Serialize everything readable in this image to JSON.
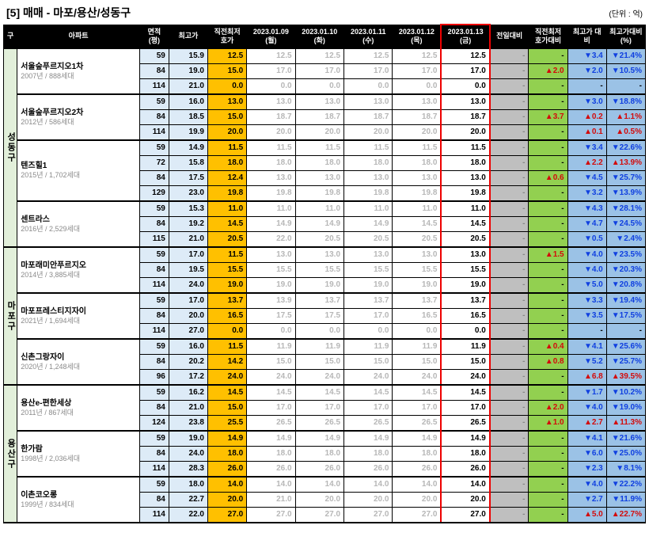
{
  "title": "[5] 매매 - 마포/용산/성동구",
  "unit": "(단위 : 억)",
  "headers": {
    "gu": "구",
    "apt": "아파트",
    "area": "면적\n(평)",
    "high": "최고가",
    "prev_low": "직전최저\n호가",
    "day1": "2023.01.09\n(월)",
    "day2": "2023.01.10\n(화)",
    "day3": "2023.01.11\n(수)",
    "day4": "2023.01.12\n(목)",
    "day5": "2023.01.13\n(금)",
    "vs_prev_day": "전일대비",
    "vs_prev_low": "직전최저\n호가대비",
    "vs_high": "최고가\n대비",
    "vs_high_pct": "최고가대비\n(%)"
  },
  "districts": [
    {
      "gu": "성동구",
      "complexes": [
        {
          "name": "서울숲푸르지오1차",
          "sub": "2007년 / 888세대",
          "rows": [
            {
              "area": 59,
              "high": 15.9,
              "prev": 12.5,
              "d": [
                12.5,
                12.5,
                12.5,
                12.5,
                12.5
              ],
              "vpd": "-",
              "vpl": [
                "-",
                null
              ],
              "vh": [
                -3.4,
                "down"
              ],
              "vhp": [
                -21.4,
                "down"
              ]
            },
            {
              "area": 84,
              "high": 19.0,
              "prev": 15.0,
              "d": [
                17.0,
                17.0,
                17.0,
                17.0,
                17.0
              ],
              "vpd": "-",
              "vpl": [
                2.0,
                "up"
              ],
              "vh": [
                -2.0,
                "down"
              ],
              "vhp": [
                -10.5,
                "down"
              ]
            },
            {
              "area": 114,
              "high": 21.0,
              "prev": 0.0,
              "d": [
                0.0,
                0.0,
                0.0,
                0.0,
                0.0
              ],
              "vpd": "-",
              "vpl": [
                "-",
                null
              ],
              "vh": [
                "-",
                null
              ],
              "vhp": [
                "-",
                null
              ]
            }
          ]
        },
        {
          "name": "서울숲푸르지오2차",
          "sub": "2012년 / 586세대",
          "rows": [
            {
              "area": 59,
              "high": 16.0,
              "prev": 13.0,
              "d": [
                13.0,
                13.0,
                13.0,
                13.0,
                13.0
              ],
              "vpd": "-",
              "vpl": [
                "-",
                null
              ],
              "vh": [
                -3.0,
                "down"
              ],
              "vhp": [
                -18.8,
                "down"
              ]
            },
            {
              "area": 84,
              "high": 18.5,
              "prev": 15.0,
              "d": [
                18.7,
                18.7,
                18.7,
                18.7,
                18.7
              ],
              "vpd": "-",
              "vpl": [
                3.7,
                "up"
              ],
              "vh": [
                0.2,
                "up"
              ],
              "vhp": [
                1.1,
                "up"
              ]
            },
            {
              "area": 114,
              "high": 19.9,
              "prev": 20.0,
              "d": [
                20.0,
                20.0,
                20.0,
                20.0,
                20.0
              ],
              "vpd": "-",
              "vpl": [
                "-",
                null
              ],
              "vh": [
                0.1,
                "up"
              ],
              "vhp": [
                0.5,
                "up"
              ]
            }
          ]
        },
        {
          "name": "텐즈힐1",
          "sub": "2015년 / 1,702세대",
          "rows": [
            {
              "area": 59,
              "high": 14.9,
              "prev": 11.5,
              "d": [
                11.5,
                11.5,
                11.5,
                11.5,
                11.5
              ],
              "vpd": "-",
              "vpl": [
                "-",
                null
              ],
              "vh": [
                -3.4,
                "down"
              ],
              "vhp": [
                -22.6,
                "down"
              ]
            },
            {
              "area": 72,
              "high": 15.8,
              "prev": 18.0,
              "d": [
                18.0,
                18.0,
                18.0,
                18.0,
                18.0
              ],
              "vpd": "-",
              "vpl": [
                "-",
                null
              ],
              "vh": [
                2.2,
                "up"
              ],
              "vhp": [
                13.9,
                "up"
              ]
            },
            {
              "area": 84,
              "high": 17.5,
              "prev": 12.4,
              "d": [
                13.0,
                13.0,
                13.0,
                13.0,
                13.0
              ],
              "vpd": "-",
              "vpl": [
                0.6,
                "up"
              ],
              "vh": [
                -4.5,
                "down"
              ],
              "vhp": [
                -25.7,
                "down"
              ]
            },
            {
              "area": 129,
              "high": 23.0,
              "prev": 19.8,
              "d": [
                19.8,
                19.8,
                19.8,
                19.8,
                19.8
              ],
              "vpd": "-",
              "vpl": [
                "-",
                null
              ],
              "vh": [
                -3.2,
                "down"
              ],
              "vhp": [
                -13.9,
                "down"
              ]
            }
          ]
        },
        {
          "name": "센트라스",
          "sub": "2016년 / 2,529세대",
          "rows": [
            {
              "area": 59,
              "high": 15.3,
              "prev": 11.0,
              "d": [
                11.0,
                11.0,
                11.0,
                11.0,
                11.0
              ],
              "vpd": "-",
              "vpl": [
                "-",
                null
              ],
              "vh": [
                -4.3,
                "down"
              ],
              "vhp": [
                -28.1,
                "down"
              ]
            },
            {
              "area": 84,
              "high": 19.2,
              "prev": 14.5,
              "d": [
                14.9,
                14.9,
                14.9,
                14.5,
                14.5
              ],
              "vpd": "-",
              "vpl": [
                "-",
                null
              ],
              "vh": [
                -4.7,
                "down"
              ],
              "vhp": [
                -24.5,
                "down"
              ]
            },
            {
              "area": 115,
              "high": 21.0,
              "prev": 20.5,
              "d": [
                22.0,
                20.5,
                20.5,
                20.5,
                20.5
              ],
              "vpd": "-",
              "vpl": [
                "-",
                null
              ],
              "vh": [
                -0.5,
                "down"
              ],
              "vhp": [
                -2.4,
                "down"
              ]
            }
          ]
        }
      ]
    },
    {
      "gu": "마포구",
      "complexes": [
        {
          "name": "마포래미안푸르지오",
          "sub": "2014년 / 3,885세대",
          "rows": [
            {
              "area": 59,
              "high": 17.0,
              "prev": 11.5,
              "d": [
                13.0,
                13.0,
                13.0,
                13.0,
                13.0
              ],
              "vpd": "-",
              "vpl": [
                1.5,
                "up"
              ],
              "vh": [
                -4.0,
                "down"
              ],
              "vhp": [
                -23.5,
                "down"
              ]
            },
            {
              "area": 84,
              "high": 19.5,
              "prev": 15.5,
              "d": [
                15.5,
                15.5,
                15.5,
                15.5,
                15.5
              ],
              "vpd": "-",
              "vpl": [
                "-",
                null
              ],
              "vh": [
                -4.0,
                "down"
              ],
              "vhp": [
                -20.3,
                "down"
              ]
            },
            {
              "area": 114,
              "high": 24.0,
              "prev": 19.0,
              "d": [
                19.0,
                19.0,
                19.0,
                19.0,
                19.0
              ],
              "vpd": "-",
              "vpl": [
                "-",
                null
              ],
              "vh": [
                -5.0,
                "down"
              ],
              "vhp": [
                -20.8,
                "down"
              ]
            }
          ]
        },
        {
          "name": "마포프레스티지자이",
          "sub": "2021년 / 1,694세대",
          "rows": [
            {
              "area": 59,
              "high": 17.0,
              "prev": 13.7,
              "d": [
                13.9,
                13.7,
                13.7,
                13.7,
                13.7
              ],
              "vpd": "-",
              "vpl": [
                "-",
                null
              ],
              "vh": [
                -3.3,
                "down"
              ],
              "vhp": [
                -19.4,
                "down"
              ]
            },
            {
              "area": 84,
              "high": 20.0,
              "prev": 16.5,
              "d": [
                17.5,
                17.5,
                17.0,
                16.5,
                16.5
              ],
              "vpd": "-",
              "vpl": [
                "-",
                null
              ],
              "vh": [
                -3.5,
                "down"
              ],
              "vhp": [
                -17.5,
                "down"
              ]
            },
            {
              "area": 114,
              "high": 27.0,
              "prev": 0.0,
              "d": [
                0.0,
                0.0,
                0.0,
                0.0,
                0.0
              ],
              "vpd": "-",
              "vpl": [
                "-",
                null
              ],
              "vh": [
                "-",
                null
              ],
              "vhp": [
                "-",
                null
              ]
            }
          ]
        },
        {
          "name": "신촌그랑자이",
          "sub": "2020년 / 1,248세대",
          "rows": [
            {
              "area": 59,
              "high": 16.0,
              "prev": 11.5,
              "d": [
                11.9,
                11.9,
                11.9,
                11.9,
                11.9
              ],
              "vpd": "-",
              "vpl": [
                0.4,
                "up"
              ],
              "vh": [
                -4.1,
                "down"
              ],
              "vhp": [
                -25.6,
                "down"
              ]
            },
            {
              "area": 84,
              "high": 20.2,
              "prev": 14.2,
              "d": [
                15.0,
                15.0,
                15.0,
                15.0,
                15.0
              ],
              "vpd": "-",
              "vpl": [
                0.8,
                "up"
              ],
              "vh": [
                -5.2,
                "down"
              ],
              "vhp": [
                -25.7,
                "down"
              ]
            },
            {
              "area": 96,
              "high": 17.2,
              "prev": 24.0,
              "d": [
                24.0,
                24.0,
                24.0,
                24.0,
                24.0
              ],
              "vpd": "-",
              "vpl": [
                "-",
                null
              ],
              "vh": [
                6.8,
                "up"
              ],
              "vhp": [
                39.5,
                "up"
              ]
            }
          ]
        }
      ]
    },
    {
      "gu": "용산구",
      "complexes": [
        {
          "name": "용산e-편한세상",
          "sub": "2011년 / 867세대",
          "rows": [
            {
              "area": 59,
              "high": 16.2,
              "prev": 14.5,
              "d": [
                14.5,
                14.5,
                14.5,
                14.5,
                14.5
              ],
              "vpd": "-",
              "vpl": [
                "-",
                null
              ],
              "vh": [
                -1.7,
                "down"
              ],
              "vhp": [
                -10.2,
                "down"
              ]
            },
            {
              "area": 84,
              "high": 21.0,
              "prev": 15.0,
              "d": [
                17.0,
                17.0,
                17.0,
                17.0,
                17.0
              ],
              "vpd": "-",
              "vpl": [
                2.0,
                "up"
              ],
              "vh": [
                -4.0,
                "down"
              ],
              "vhp": [
                -19.0,
                "down"
              ]
            },
            {
              "area": 124,
              "high": 23.8,
              "prev": 25.5,
              "d": [
                26.5,
                26.5,
                26.5,
                26.5,
                26.5
              ],
              "vpd": "-",
              "vpl": [
                1.0,
                "up"
              ],
              "vh": [
                2.7,
                "up"
              ],
              "vhp": [
                11.3,
                "up"
              ]
            }
          ]
        },
        {
          "name": "한가람",
          "sub": "1998년 / 2,036세대",
          "rows": [
            {
              "area": 59,
              "high": 19.0,
              "prev": 14.9,
              "d": [
                14.9,
                14.9,
                14.9,
                14.9,
                14.9
              ],
              "vpd": "-",
              "vpl": [
                "-",
                null
              ],
              "vh": [
                -4.1,
                "down"
              ],
              "vhp": [
                -21.6,
                "down"
              ]
            },
            {
              "area": 84,
              "high": 24.0,
              "prev": 18.0,
              "d": [
                18.0,
                18.0,
                18.0,
                18.0,
                18.0
              ],
              "vpd": "-",
              "vpl": [
                "-",
                null
              ],
              "vh": [
                -6.0,
                "down"
              ],
              "vhp": [
                -25.0,
                "down"
              ]
            },
            {
              "area": 114,
              "high": 28.3,
              "prev": 26.0,
              "d": [
                26.0,
                26.0,
                26.0,
                26.0,
                26.0
              ],
              "vpd": "-",
              "vpl": [
                "-",
                null
              ],
              "vh": [
                -2.3,
                "down"
              ],
              "vhp": [
                -8.1,
                "down"
              ]
            }
          ]
        },
        {
          "name": "이촌코오롱",
          "sub": "1999년 / 834세대",
          "rows": [
            {
              "area": 59,
              "high": 18.0,
              "prev": 14.0,
              "d": [
                14.0,
                14.0,
                14.0,
                14.0,
                14.0
              ],
              "vpd": "-",
              "vpl": [
                "-",
                null
              ],
              "vh": [
                -4.0,
                "down"
              ],
              "vhp": [
                -22.2,
                "down"
              ]
            },
            {
              "area": 84,
              "high": 22.7,
              "prev": 20.0,
              "d": [
                21.0,
                20.0,
                20.0,
                20.0,
                20.0
              ],
              "vpd": "-",
              "vpl": [
                "-",
                null
              ],
              "vh": [
                -2.7,
                "down"
              ],
              "vhp": [
                -11.9,
                "down"
              ]
            },
            {
              "area": 114,
              "high": 22.0,
              "prev": 27.0,
              "d": [
                27.0,
                27.0,
                27.0,
                27.0,
                27.0
              ],
              "vpd": "-",
              "vpl": [
                "-",
                null
              ],
              "vh": [
                5.0,
                "up"
              ],
              "vhp": [
                22.7,
                "up"
              ]
            }
          ]
        }
      ]
    }
  ]
}
